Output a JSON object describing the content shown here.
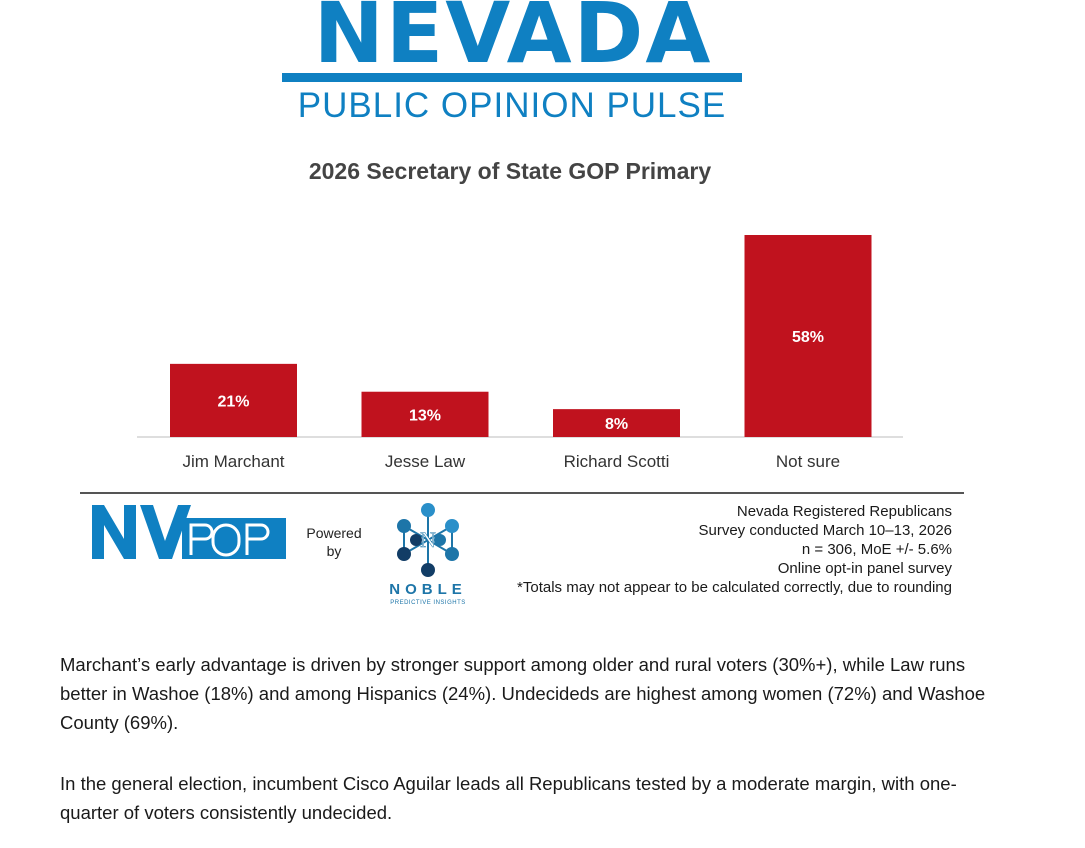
{
  "brand": {
    "title": "NEVADA",
    "subtitle": "PUBLIC OPINION PULSE",
    "color": "#0f80c2"
  },
  "chart_data": {
    "type": "bar",
    "title": "2026 Secretary of State GOP Primary",
    "categories": [
      "Jim Marchant",
      "Jesse Law",
      "Richard Scotti",
      "Not sure"
    ],
    "values": [
      21,
      13,
      8,
      58
    ],
    "value_labels": [
      "21%",
      "13%",
      "8%",
      "58%"
    ],
    "xlabel": "",
    "ylabel": "",
    "ylim": [
      0,
      60
    ],
    "grid": false,
    "legend": "none",
    "bar_color": "#c0121e"
  },
  "footer": {
    "logo_text": "NVPOP",
    "powered_by": "Powered by",
    "partner_name": "NOBLE",
    "partner_tagline": "PREDICTIVE INSIGHTS",
    "notes": [
      "Nevada Registered Republicans",
      "Survey conducted March 10–13, 2026",
      "n = 306, MoE +/- 5.6%",
      "Online opt-in panel survey",
      "*Totals may not appear to be calculated correctly, due to rounding"
    ]
  },
  "body_text": {
    "p1": "Marchant’s early advantage is driven by stronger support among older and rural voters (30%+), while Law runs better in Washoe (18%) and among Hispanics (24%). Undecideds are highest among women (72%) and Washoe County (69%).",
    "p2": "In the general election, incumbent Cisco Aguilar leads all Republicans tested by a moderate margin, with one-quarter of voters consistently undecided."
  }
}
